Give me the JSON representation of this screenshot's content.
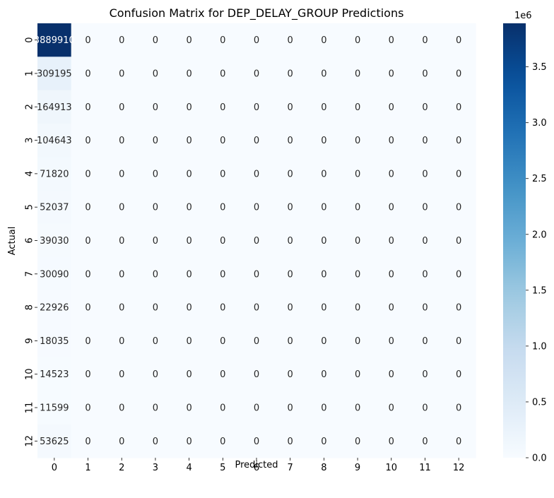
{
  "chart_data": {
    "type": "heatmap",
    "title": "Confusion Matrix for DEP_DELAY_GROUP Predictions",
    "xlabel": "Predicted",
    "ylabel": "Actual",
    "x_categories": [
      "0",
      "1",
      "2",
      "3",
      "4",
      "5",
      "6",
      "7",
      "8",
      "9",
      "10",
      "11",
      "12"
    ],
    "y_categories": [
      "0",
      "1",
      "2",
      "3",
      "4",
      "5",
      "6",
      "7",
      "8",
      "9",
      "10",
      "11",
      "12"
    ],
    "matrix": [
      [
        3889910,
        0,
        0,
        0,
        0,
        0,
        0,
        0,
        0,
        0,
        0,
        0,
        0
      ],
      [
        309195,
        0,
        0,
        0,
        0,
        0,
        0,
        0,
        0,
        0,
        0,
        0,
        0
      ],
      [
        164913,
        0,
        0,
        0,
        0,
        0,
        0,
        0,
        0,
        0,
        0,
        0,
        0
      ],
      [
        104643,
        0,
        0,
        0,
        0,
        0,
        0,
        0,
        0,
        0,
        0,
        0,
        0
      ],
      [
        71820,
        0,
        0,
        0,
        0,
        0,
        0,
        0,
        0,
        0,
        0,
        0,
        0
      ],
      [
        52037,
        0,
        0,
        0,
        0,
        0,
        0,
        0,
        0,
        0,
        0,
        0,
        0
      ],
      [
        39030,
        0,
        0,
        0,
        0,
        0,
        0,
        0,
        0,
        0,
        0,
        0,
        0
      ],
      [
        30090,
        0,
        0,
        0,
        0,
        0,
        0,
        0,
        0,
        0,
        0,
        0,
        0
      ],
      [
        22926,
        0,
        0,
        0,
        0,
        0,
        0,
        0,
        0,
        0,
        0,
        0,
        0
      ],
      [
        18035,
        0,
        0,
        0,
        0,
        0,
        0,
        0,
        0,
        0,
        0,
        0,
        0
      ],
      [
        14523,
        0,
        0,
        0,
        0,
        0,
        0,
        0,
        0,
        0,
        0,
        0,
        0
      ],
      [
        11599,
        0,
        0,
        0,
        0,
        0,
        0,
        0,
        0,
        0,
        0,
        0,
        0
      ],
      [
        53625,
        0,
        0,
        0,
        0,
        0,
        0,
        0,
        0,
        0,
        0,
        0,
        0
      ]
    ],
    "colormap": "Blues",
    "colorbar": {
      "range": [
        0,
        3889910
      ],
      "ticks": [
        0,
        500000,
        1000000,
        1500000,
        2000000,
        2500000,
        3000000,
        3500000
      ],
      "tick_labels": [
        "0.0",
        "0.5",
        "1.0",
        "1.5",
        "2.0",
        "2.5",
        "3.0",
        "3.5"
      ],
      "offset_label": "1e6"
    },
    "annotations": true,
    "grid": false
  }
}
